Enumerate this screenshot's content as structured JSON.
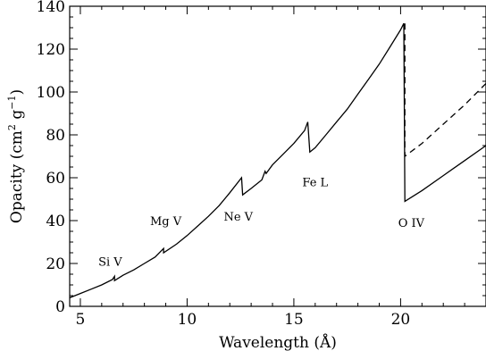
{
  "chart_data": {
    "type": "line",
    "title": "",
    "xlabel": "Wavelength (Å)",
    "ylabel": "Opacity (cm² g⁻¹)",
    "ylabel_parts": {
      "prefix": "Opacity (cm",
      "sup1": "2",
      "mid": " g",
      "sup2": "−1",
      "suffix": ")"
    },
    "xlim": [
      4.5,
      24.0
    ],
    "ylim": [
      0,
      140
    ],
    "xticks": [
      5,
      10,
      15,
      20
    ],
    "yticks": [
      0,
      20,
      40,
      60,
      80,
      100,
      120,
      140
    ],
    "xtick_labels": [
      "5",
      "10",
      "15",
      "20"
    ],
    "ytick_labels": [
      "0",
      "20",
      "40",
      "60",
      "80",
      "100",
      "120",
      "140"
    ],
    "grid": false,
    "series": [
      {
        "style": "solid",
        "x": [
          4.5,
          5.0,
          5.5,
          6.0,
          6.5,
          6.6,
          6.6,
          7.0,
          7.5,
          8.0,
          8.5,
          8.9,
          8.9,
          9.5,
          10.0,
          10.5,
          11.0,
          11.5,
          12.0,
          12.55,
          12.6,
          13.0,
          13.5,
          13.65,
          13.7,
          14.0,
          14.5,
          15.0,
          15.5,
          15.65,
          15.75,
          16.0,
          16.5,
          17.0,
          17.5,
          18.0,
          18.5,
          19.0,
          19.5,
          20.0,
          20.15,
          20.2,
          21.0,
          22.0,
          23.0,
          24.0
        ],
        "y": [
          4,
          6,
          8,
          10,
          12.5,
          14,
          12,
          14.5,
          17,
          20,
          23,
          27,
          25,
          29,
          33,
          37.5,
          42,
          47,
          53,
          60,
          52,
          55,
          59,
          63,
          62,
          66,
          71,
          76,
          82,
          86,
          72,
          74,
          80,
          86,
          92,
          99,
          106,
          113,
          121,
          129,
          132,
          49,
          54,
          61,
          68,
          75
        ]
      },
      {
        "style": "dashed",
        "x": [
          20.2,
          20.2,
          21.0,
          22.0,
          23.0,
          24.0
        ],
        "y": [
          132,
          70,
          76,
          85,
          94,
          104
        ]
      }
    ],
    "annotations": [
      {
        "text": "Si V",
        "x": 6.4,
        "y": 19
      },
      {
        "text": "Mg V",
        "x": 9.0,
        "y": 38
      },
      {
        "text": "Ne V",
        "x": 12.4,
        "y": 40
      },
      {
        "text": "Fe L",
        "x": 16.0,
        "y": 56
      },
      {
        "text": "O IV",
        "x": 20.5,
        "y": 37
      }
    ]
  }
}
